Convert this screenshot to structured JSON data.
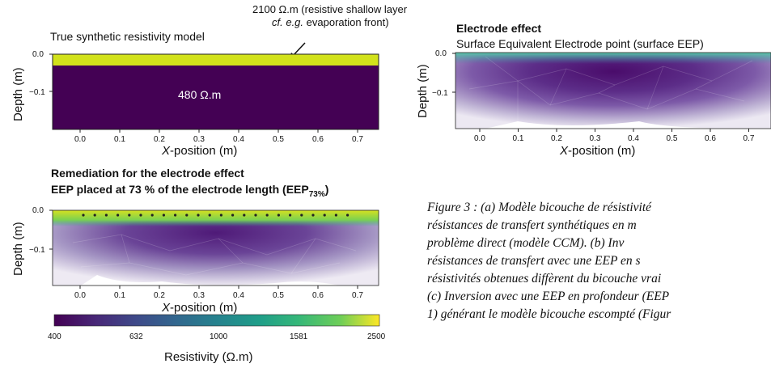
{
  "panel_a": {
    "annotation_line1": "2100 Ω.m (resistive shallow layer",
    "annotation_line2_em": "cf. e.g.",
    "annotation_line2_rest": " evaporation front)",
    "title": "True synthetic resistivity model",
    "inner_label": "480 Ω.m",
    "ylabel": "Depth (m)",
    "xlabel_var": "X",
    "xlabel_rest": "-position (m)"
  },
  "panel_b": {
    "title_bold": "Electrode effect",
    "subtitle": "Surface Equivalent Electrode point (surface EEP)",
    "ylabel": "Depth (m)",
    "xlabel_var": "X",
    "xlabel_rest": "-position (m)"
  },
  "panel_c": {
    "title_line1": "Remediation for the electrode effect",
    "title_line2": "EEP placed at 73 % of the electrode length (EEP",
    "title_sub": "73%",
    "title_end": ")",
    "ylabel": "Depth (m)",
    "xlabel_var": "X",
    "xlabel_rest": "-position (m)"
  },
  "colorbar": {
    "ticks": [
      "400",
      "632",
      "1000",
      "1581",
      "2500"
    ],
    "label": "Resistivity (Ω.m)",
    "colors": [
      "#440154",
      "#3b528b",
      "#21918c",
      "#5ec962",
      "#fde725"
    ]
  },
  "axes": {
    "x_ticks": [
      "0.0",
      "0.1",
      "0.2",
      "0.3",
      "0.4",
      "0.5",
      "0.6",
      "0.7"
    ],
    "y_ticks": [
      "0.0",
      "−0.1"
    ]
  },
  "caption": {
    "lines": [
      "Figure 3 : (a) Modèle bicouche de résistivité",
      "résistances de transfert synthétiques en m",
      "problème direct (modèle CCM). (b) Inv",
      "résistances de transfert avec une EEP en s",
      "résistivités obtenues diffèrent du bicouche vrai",
      "(c) Inversion avec une EEP en profondeur (EEP",
      "1) générant le modèle bicouche escompté (Figur"
    ]
  }
}
